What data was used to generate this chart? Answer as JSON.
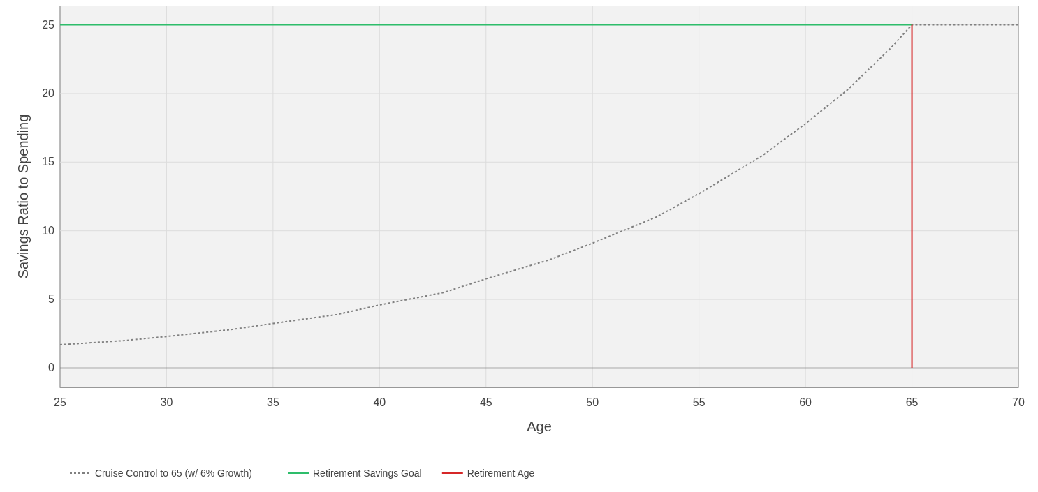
{
  "chart_data": {
    "type": "line",
    "xlabel": "Age",
    "ylabel": "Savings Ratio to Spending",
    "xlim": [
      25,
      70
    ],
    "ylim": [
      -1.4,
      26.4
    ],
    "xticks": [
      25,
      30,
      35,
      40,
      45,
      50,
      55,
      60,
      65,
      70
    ],
    "yticks": [
      0,
      5,
      10,
      15,
      20,
      25
    ],
    "grid": true,
    "legend": "bottom left",
    "series": [
      {
        "name": "Cruise Control to 65 (w/ 6% Growth)",
        "color": "#808080",
        "line_style": "dotted",
        "x": [
          25,
          28,
          30,
          33,
          35,
          38,
          40,
          43,
          45,
          48,
          50,
          53,
          55,
          58,
          60,
          62,
          63,
          64,
          65,
          70
        ],
        "values": [
          1.7,
          2.0,
          2.3,
          2.8,
          3.25,
          3.9,
          4.6,
          5.5,
          6.5,
          7.9,
          9.1,
          11.0,
          12.7,
          15.5,
          17.8,
          20.3,
          21.8,
          23.3,
          25,
          25
        ]
      },
      {
        "name": "Retirement Savings Goal",
        "color": "#2ebd6b",
        "line_style": "solid",
        "x": [
          25,
          65
        ],
        "values": [
          25,
          25
        ]
      },
      {
        "name": "Retirement Age",
        "color": "#d62728",
        "line_style": "solid",
        "x": [
          65,
          65
        ],
        "values": [
          0,
          25
        ]
      }
    ]
  }
}
